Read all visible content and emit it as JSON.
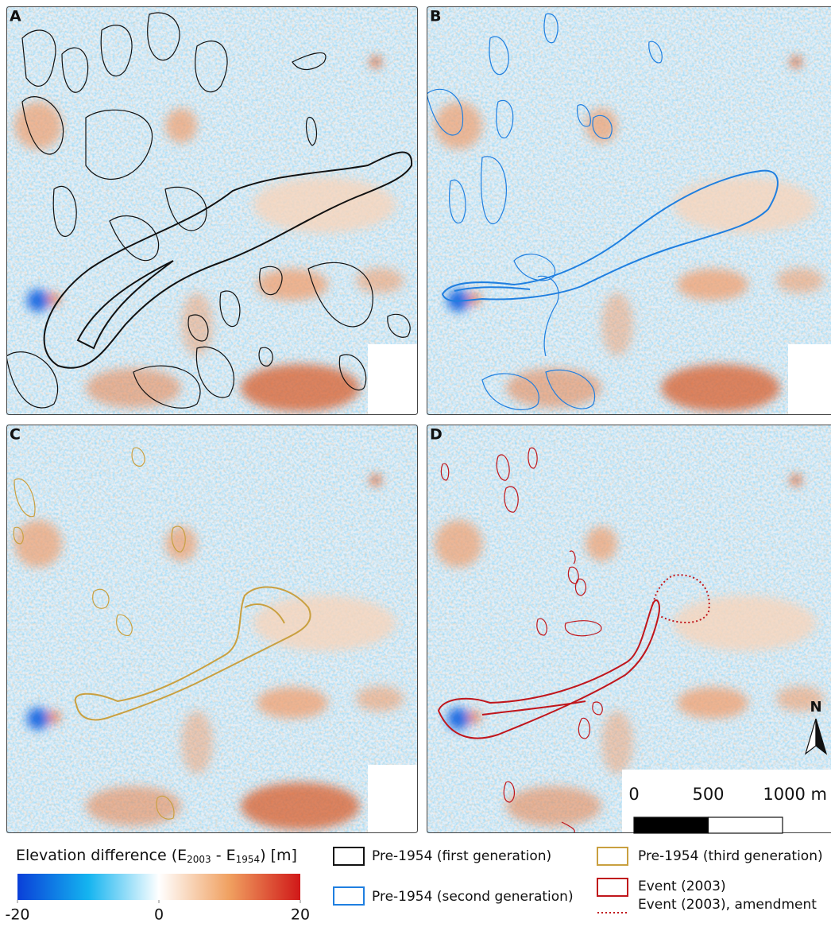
{
  "panels": [
    {
      "label": "A",
      "outline_color": "#111111"
    },
    {
      "label": "B",
      "outline_color": "#1f7fe0"
    },
    {
      "label": "C",
      "outline_color": "#c9a040"
    },
    {
      "label": "D",
      "outline_color": "#c0161c"
    }
  ],
  "north_arrow": "N",
  "scale_bar": {
    "lim": [
      0,
      1000
    ],
    "ticks": [
      0,
      500,
      {
        "value": 1000,
        "label": "1000 m"
      }
    ]
  },
  "colorbar": {
    "title_parts": [
      "Elevation difference (E",
      "2003",
      " - E",
      "1954",
      ") [m]"
    ],
    "lim": [
      -20,
      20
    ],
    "ticks": [
      -20,
      0,
      20
    ]
  },
  "legend": [
    {
      "label": "Pre-1954 (first generation)",
      "color": "#111111",
      "style": "solid"
    },
    {
      "label": "Pre-1954 (second generation)",
      "color": "#1f7fe0",
      "style": "solid"
    },
    {
      "label": "Pre-1954 (third generation)",
      "color": "#c9a040",
      "style": "solid"
    },
    {
      "label": "Event (2003)",
      "color": "#c0161c",
      "style": "solid"
    },
    {
      "label": "Event (2003), amendment",
      "color": "#c0161c",
      "style": "dotted"
    }
  ]
}
